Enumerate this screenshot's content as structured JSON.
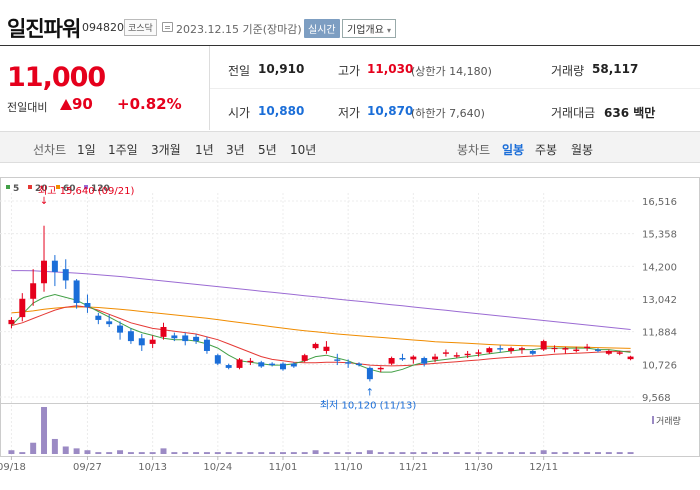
{
  "stock": {
    "name": "일진파워",
    "code": "094820",
    "market": "코스닥",
    "date": "2023.12.15",
    "basis": "기준(장마감)",
    "realtime_label": "실시간",
    "overview_label": "기업개요"
  },
  "price": {
    "current": "11,000",
    "change_label": "전일대비",
    "change": "90",
    "change_pct": "+0.82%"
  },
  "stats": {
    "prev_label": "전일",
    "prev": "10,910",
    "high_label": "고가",
    "high": "11,030",
    "upper_limit": "(상한가 14,180)",
    "vol_label": "거래량",
    "volume": "58,117",
    "open_label": "시가",
    "open": "10,880",
    "low_label": "저가",
    "low": "10,870",
    "lower_limit": "(하한가 7,640)",
    "amt_label": "거래대금",
    "amount": "636 백만"
  },
  "periods": {
    "label": "선차트",
    "items": [
      "1일",
      "1주일",
      "3개월",
      "1년",
      "3년",
      "5년",
      "10년"
    ],
    "candle_label": "봉차트",
    "candles": [
      "일봉",
      "주봉",
      "월봉"
    ],
    "selected_candle": "일봉"
  },
  "chart_data": {
    "type": "candlestick",
    "legend": [
      {
        "name": "5",
        "color": "#43a047"
      },
      {
        "name": "20",
        "color": "#e53935"
      },
      {
        "name": "60",
        "color": "#f08c00"
      },
      {
        "name": "120",
        "color": "#9b6bd3"
      }
    ],
    "y_ticks": [
      16516,
      15358,
      14200,
      13042,
      11884,
      10726,
      9568
    ],
    "ylim": [
      9568,
      16516
    ],
    "x_labels": [
      "09/18",
      "09/27",
      "10/13",
      "10/24",
      "11/01",
      "11/10",
      "11/21",
      "11/30",
      "12/11"
    ],
    "x_label_index": [
      0,
      7,
      13,
      19,
      25,
      31,
      37,
      43,
      49
    ],
    "annot_high": "최고 15,640 (09/21)",
    "annot_low": "최저 10,120 (11/13)",
    "volume_label": "거래량",
    "candles": [
      [
        12150,
        12400,
        12000,
        12300
      ],
      [
        12400,
        13250,
        12250,
        13050
      ],
      [
        13050,
        14100,
        12800,
        13600
      ],
      [
        13600,
        15640,
        13300,
        14400
      ],
      [
        14400,
        14600,
        13500,
        14000
      ],
      [
        14100,
        14450,
        13400,
        13700
      ],
      [
        13700,
        13750,
        12700,
        12900
      ],
      [
        12900,
        13200,
        12550,
        12750
      ],
      [
        12450,
        12550,
        12150,
        12300
      ],
      [
        12250,
        12500,
        12050,
        12150
      ],
      [
        12100,
        12250,
        11600,
        11850
      ],
      [
        11900,
        12000,
        11450,
        11550
      ],
      [
        11650,
        11800,
        11200,
        11400
      ],
      [
        11450,
        11750,
        11300,
        11600
      ],
      [
        11700,
        12200,
        11600,
        12050
      ],
      [
        11750,
        11850,
        11550,
        11650
      ],
      [
        11750,
        11850,
        11400,
        11550
      ],
      [
        11700,
        11800,
        11450,
        11550
      ],
      [
        11600,
        11700,
        11100,
        11200
      ],
      [
        11050,
        11100,
        10700,
        10750
      ],
      [
        10700,
        10750,
        10550,
        10600
      ],
      [
        10600,
        10950,
        10550,
        10900
      ],
      [
        10800,
        10950,
        10700,
        10850
      ],
      [
        10800,
        10850,
        10600,
        10650
      ],
      [
        10750,
        10800,
        10650,
        10700
      ],
      [
        10750,
        10800,
        10500,
        10550
      ],
      [
        10750,
        10800,
        10600,
        10650
      ],
      [
        10850,
        11100,
        10800,
        11050
      ],
      [
        11300,
        11500,
        11250,
        11450
      ],
      [
        11200,
        11550,
        11100,
        11350
      ],
      [
        10900,
        11100,
        10700,
        10850
      ],
      [
        10800,
        10900,
        10600,
        10750
      ],
      [
        10750,
        10800,
        10650,
        10700
      ],
      [
        10600,
        10650,
        10120,
        10200
      ],
      [
        10550,
        10650,
        10450,
        10600
      ],
      [
        10750,
        11000,
        10700,
        10950
      ],
      [
        10950,
        11100,
        10850,
        10900
      ],
      [
        10900,
        11050,
        10750,
        11000
      ],
      [
        10950,
        11000,
        10650,
        10750
      ],
      [
        10900,
        11100,
        10800,
        11000
      ],
      [
        11100,
        11250,
        11000,
        11150
      ],
      [
        11000,
        11150,
        10950,
        11050
      ],
      [
        11050,
        11200,
        10950,
        11100
      ],
      [
        11100,
        11250,
        11000,
        11150
      ],
      [
        11150,
        11350,
        11100,
        11300
      ],
      [
        11300,
        11400,
        11150,
        11250
      ],
      [
        11200,
        11350,
        11100,
        11300
      ],
      [
        11250,
        11350,
        11100,
        11300
      ],
      [
        11200,
        11250,
        11050,
        11100
      ],
      [
        11250,
        11600,
        11200,
        11550
      ],
      [
        11300,
        11400,
        11150,
        11300
      ],
      [
        11250,
        11350,
        11100,
        11300
      ],
      [
        11200,
        11350,
        11150,
        11250
      ],
      [
        11300,
        11450,
        11200,
        11350
      ],
      [
        11250,
        11300,
        11150,
        11200
      ],
      [
        11100,
        11250,
        11050,
        11200
      ],
      [
        11100,
        11200,
        11050,
        11150
      ],
      [
        10910,
        11030,
        10870,
        11000
      ]
    ],
    "volumes": [
      2,
      1,
      6,
      25,
      8,
      4,
      3,
      2,
      1,
      1,
      2,
      1,
      1,
      1,
      3,
      1,
      1,
      1,
      1,
      1,
      1,
      1,
      1,
      1,
      1,
      1,
      1,
      1,
      2,
      1,
      1,
      1,
      1,
      2,
      1,
      1,
      1,
      1,
      1,
      1,
      1,
      1,
      1,
      1,
      1,
      1,
      1,
      1,
      1,
      2,
      1,
      1,
      1,
      1,
      1,
      1,
      1,
      1
    ],
    "ma5": [
      12100,
      12500,
      12900,
      13100,
      13200,
      13100,
      13000,
      12800,
      12600,
      12400,
      12200,
      12000,
      11850,
      11750,
      11650,
      11600,
      11600,
      11550,
      11450,
      11300,
      11050,
      10850,
      10800,
      10750,
      10700,
      10700,
      10750,
      10850,
      11000,
      11050,
      10950,
      10850,
      10700,
      10550,
      10450,
      10450,
      10550,
      10700,
      10800,
      10850,
      10900,
      10950,
      11000,
      11050,
      11100,
      11150,
      11200,
      11250,
      11250,
      11300,
      11300,
      11300,
      11300,
      11300,
      11250,
      11250,
      11200,
      11150
    ],
    "ma20": [
      12100,
      12200,
      12350,
      12500,
      12650,
      12750,
      12800,
      12750,
      12650,
      12500,
      12350,
      12200,
      12100,
      12000,
      11950,
      11900,
      11850,
      11800,
      11700,
      11600,
      11450,
      11300,
      11150,
      11000,
      10900,
      10850,
      10800,
      10780,
      10780,
      10800,
      10800,
      10780,
      10750,
      10700,
      10680,
      10670,
      10680,
      10700,
      10730,
      10760,
      10790,
      10820,
      10850,
      10880,
      10920,
      10950,
      10980,
      11000,
      11020,
      11050,
      11080,
      11100,
      11120,
      11140,
      11160,
      11170,
      11180,
      11190
    ],
    "ma60": [
      12550,
      12580,
      12620,
      12680,
      12720,
      12750,
      12760,
      12760,
      12740,
      12710,
      12680,
      12640,
      12600,
      12560,
      12520,
      12480,
      12440,
      12400,
      12360,
      12310,
      12260,
      12210,
      12160,
      12110,
      12060,
      12010,
      11960,
      11920,
      11880,
      11840,
      11800,
      11770,
      11740,
      11710,
      11680,
      11650,
      11620,
      11590,
      11560,
      11530,
      11510,
      11490,
      11470,
      11450,
      11430,
      11410,
      11400,
      11390,
      11380,
      11370,
      11360,
      11350,
      11340,
      11330,
      11320,
      11310,
      11300,
      11290
    ],
    "ma120": [
      14050,
      14050,
      14040,
      14020,
      14000,
      13980,
      13960,
      13930,
      13900,
      13870,
      13840,
      13800,
      13760,
      13720,
      13680,
      13640,
      13600,
      13560,
      13520,
      13480,
      13440,
      13400,
      13360,
      13320,
      13280,
      13240,
      13200,
      13160,
      13120,
      13080,
      13040,
      13000,
      12960,
      12920,
      12880,
      12840,
      12800,
      12760,
      12720,
      12680,
      12640,
      12600,
      12560,
      12520,
      12480,
      12440,
      12400,
      12360,
      12320,
      12280,
      12240,
      12200,
      12160,
      12120,
      12080,
      12040,
      12000,
      11960
    ]
  }
}
